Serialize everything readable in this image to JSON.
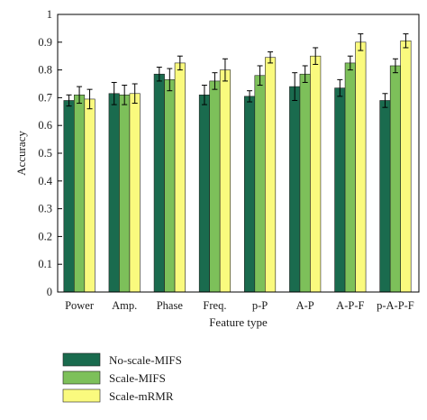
{
  "chart_data": {
    "type": "bar",
    "xlabel": "Feature type",
    "ylabel": "Accuracy",
    "ylim": [
      0,
      1
    ],
    "yticks": [
      0,
      0.1,
      0.2,
      0.3,
      0.4,
      0.5,
      0.6,
      0.7,
      0.8,
      0.9,
      1
    ],
    "categories": [
      "Power",
      "Amp.",
      "Phase",
      "Freq.",
      "p-P",
      "A-P",
      "A-P-F",
      "p-A-P-F"
    ],
    "series": [
      {
        "name": "No-scale-MIFS",
        "color": "#1a6b4e",
        "values": [
          0.69,
          0.715,
          0.785,
          0.71,
          0.705,
          0.74,
          0.735,
          0.69
        ],
        "errors": [
          0.02,
          0.04,
          0.025,
          0.035,
          0.02,
          0.05,
          0.03,
          0.025
        ]
      },
      {
        "name": "Scale-MIFS",
        "color": "#7dc05a",
        "values": [
          0.71,
          0.71,
          0.765,
          0.76,
          0.78,
          0.785,
          0.825,
          0.815
        ],
        "errors": [
          0.03,
          0.035,
          0.04,
          0.03,
          0.035,
          0.03,
          0.025,
          0.025
        ]
      },
      {
        "name": "Scale-mRMR",
        "color": "#fafa7e",
        "values": [
          0.695,
          0.715,
          0.825,
          0.8,
          0.845,
          0.85,
          0.9,
          0.905
        ],
        "errors": [
          0.035,
          0.035,
          0.025,
          0.04,
          0.02,
          0.03,
          0.03,
          0.025
        ]
      }
    ],
    "grid": false,
    "legend_position": "bottom-left"
  }
}
